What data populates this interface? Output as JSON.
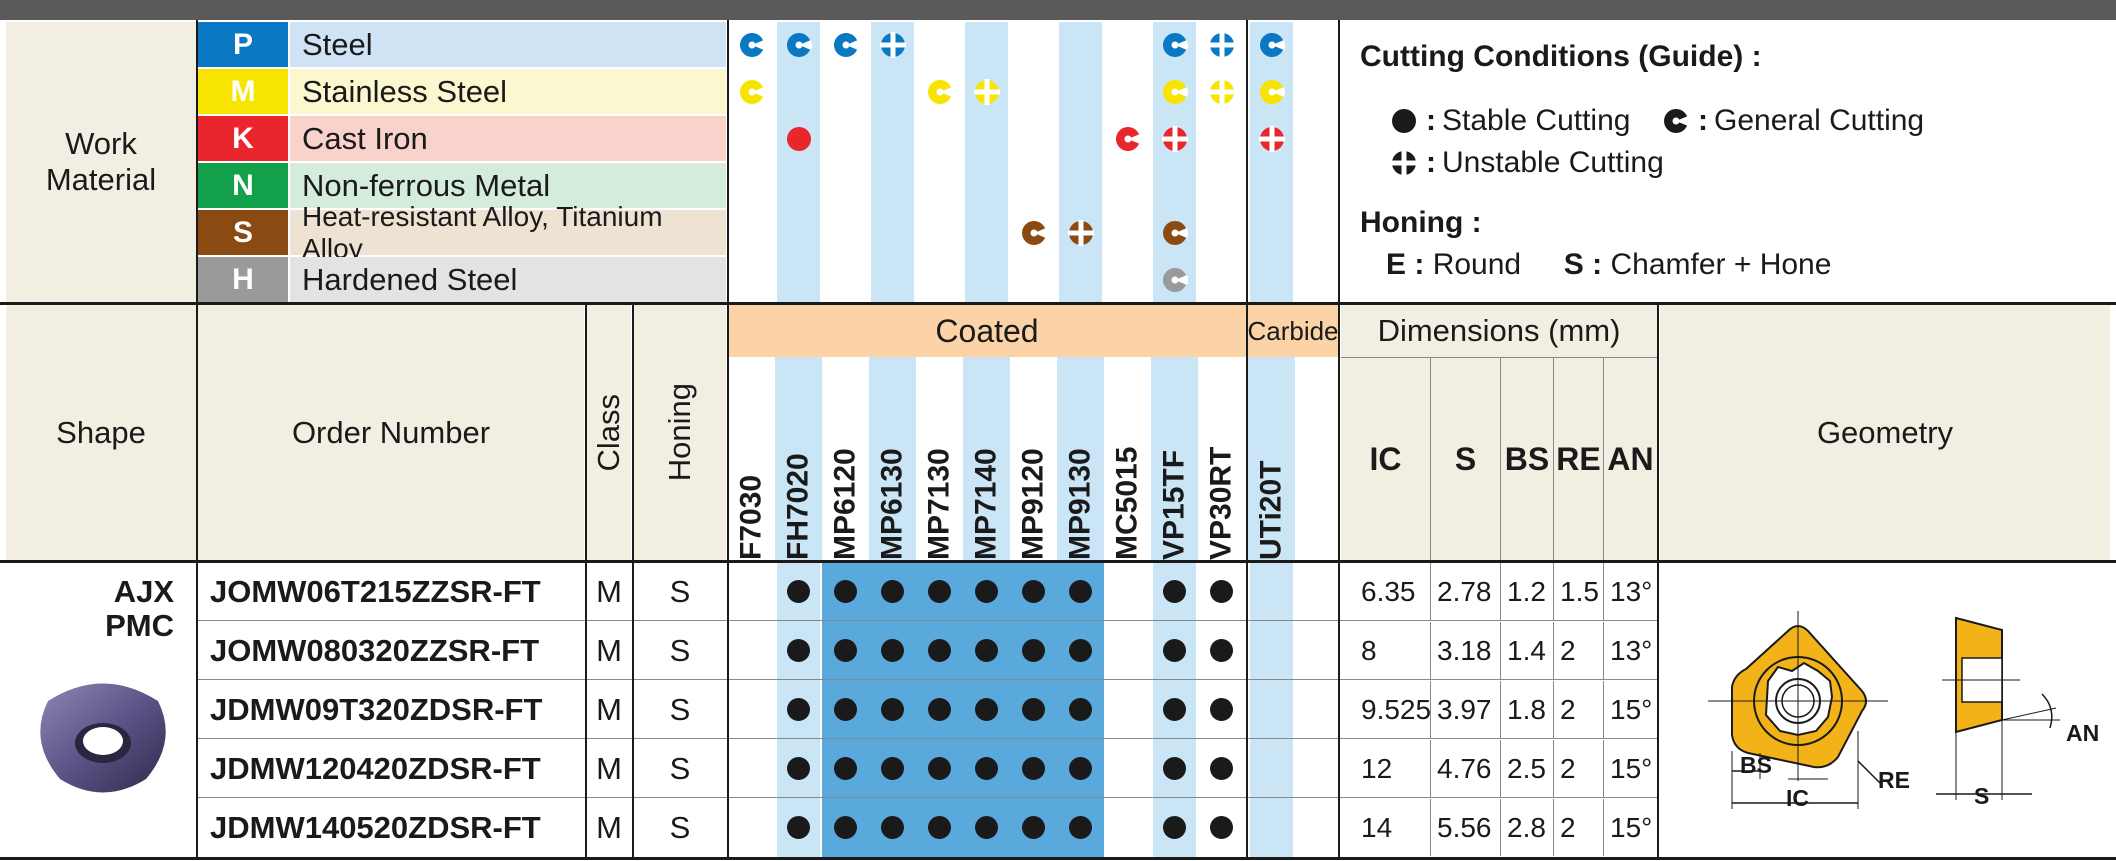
{
  "work_material": {
    "label": "Work Material",
    "groups": [
      {
        "code": "P",
        "name": "Steel",
        "color": "#0a78c3",
        "bg": "#cfe3f5"
      },
      {
        "code": "M",
        "name": "Stainless Steel",
        "color": "#f7e400",
        "bg": "#fbf7cf"
      },
      {
        "code": "K",
        "name": "Cast Iron",
        "color": "#e8262b",
        "bg": "#f9d2cb"
      },
      {
        "code": "N",
        "name": "Non-ferrous Metal",
        "color": "#13a04a",
        "bg": "#d3ecdc"
      },
      {
        "code": "S",
        "name": "Heat-resistant Alloy, Titanium Alloy",
        "color": "#8a4a12",
        "bg": "#eee2d3"
      },
      {
        "code": "H",
        "name": "Hardened Steel",
        "color": "#9a9a9a",
        "bg": "#e2e3e5"
      }
    ]
  },
  "legend": {
    "title": "Cutting Conditions (Guide) :",
    "stable": "Stable Cutting",
    "general": "General Cutting",
    "unstable": "Unstable Cutting",
    "honing_title": "Honing :",
    "honing_e_code": "E",
    "honing_e": "Round",
    "honing_s_code": "S",
    "honing_s": "Chamfer + Hone"
  },
  "headers": {
    "shape": "Shape",
    "order_number": "Order Number",
    "class": "Class",
    "honing": "Honing",
    "coated": "Coated",
    "carbide": "Carbide",
    "dimensions": "Dimensions (mm)",
    "geometry": "Geometry",
    "dim_cols": [
      "IC",
      "S",
      "BS",
      "RE",
      "AN"
    ]
  },
  "grades": [
    "F7030",
    "FH7020",
    "MP6120",
    "MP6130",
    "MP7130",
    "MP7140",
    "MP9120",
    "MP9130",
    "MC5015",
    "VP15TF",
    "VP30RT",
    "UTi20T"
  ],
  "grade_suitability": [
    [
      "P:general",
      "M:general"
    ],
    [
      "P:general",
      "K:stable"
    ],
    [
      "P:general"
    ],
    [
      "P:unstable"
    ],
    [
      "M:general"
    ],
    [
      "M:unstable"
    ],
    [
      "S:general"
    ],
    [
      "S:unstable"
    ],
    [
      "K:general"
    ],
    [
      "P:general",
      "M:general",
      "K:unstable",
      "S:general",
      "H:general"
    ],
    [
      "P:unstable",
      "M:unstable"
    ],
    [
      "P:general",
      "M:general",
      "K:unstable"
    ]
  ],
  "shape": {
    "line1": "AJX",
    "line2": "PMC"
  },
  "rows": [
    {
      "order": "JOMW06T215ZZSR-FT",
      "class": "M",
      "honing": "S",
      "IC": "6.35",
      "S": "2.78",
      "BS": "1.2",
      "RE": "1.5",
      "AN": "13°"
    },
    {
      "order": "JOMW080320ZZSR-FT",
      "class": "M",
      "honing": "S",
      "IC": "8",
      "S": "3.18",
      "BS": "1.4",
      "RE": "2",
      "AN": "13°"
    },
    {
      "order": "JDMW09T320ZDSR-FT",
      "class": "M",
      "honing": "S",
      "IC": "9.525",
      "S": "3.97",
      "BS": "1.8",
      "RE": "2",
      "AN": "15°"
    },
    {
      "order": "JDMW120420ZDSR-FT",
      "class": "M",
      "honing": "S",
      "IC": "12",
      "S": "4.76",
      "BS": "2.5",
      "RE": "2",
      "AN": "15°"
    },
    {
      "order": "JDMW140520ZDSR-FT",
      "class": "M",
      "honing": "S",
      "IC": "14",
      "S": "5.56",
      "BS": "2.8",
      "RE": "2",
      "AN": "15°"
    }
  ],
  "stock_grades": [
    "FH7020",
    "MP6120",
    "MP6130",
    "MP7130",
    "MP7140",
    "MP9120",
    "MP9130",
    "VP15TF",
    "VP30RT"
  ],
  "geometry_labels": {
    "bs": "BS",
    "ic": "IC",
    "re": "RE",
    "an": "AN",
    "s": "S"
  },
  "colors": {
    "insert_yellow": "#f3b318",
    "header_orange": "#fbd3a6",
    "stock_blue": "#5aa9dd",
    "grade_light_blue": "#c9e5f6"
  }
}
